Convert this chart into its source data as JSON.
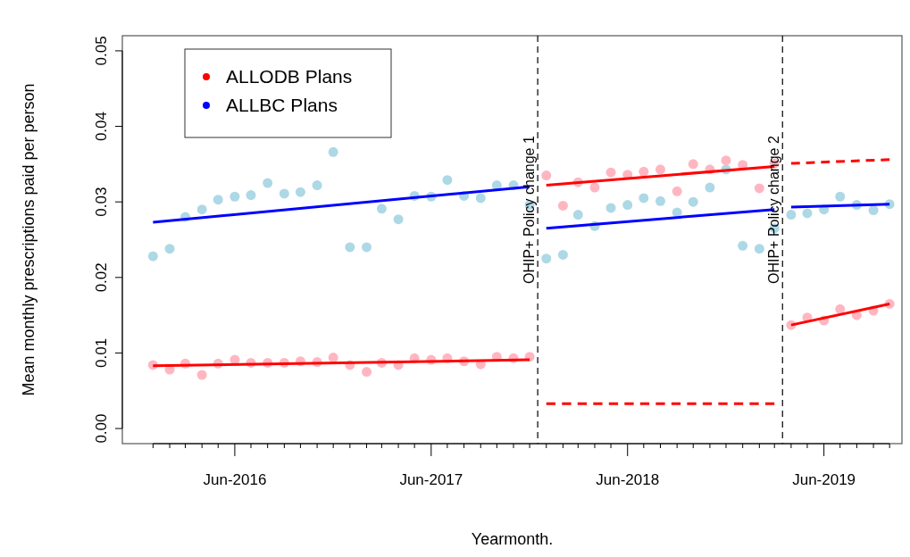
{
  "chart_data": {
    "type": "scatter",
    "xlabel": "Yearmonth.",
    "ylabel": "Mean monthly prescriptions paid per person",
    "xlim": [
      "2015-11-05",
      "2019-10-24"
    ],
    "xticks": [
      {
        "value": "2016-01",
        "label": null
      },
      {
        "value": "2016-02",
        "label": null
      },
      {
        "value": "2016-03",
        "label": null
      },
      {
        "value": "2016-04",
        "label": null
      },
      {
        "value": "2016-05",
        "label": null
      },
      {
        "value": "2016-06",
        "label": "Jun-2016"
      },
      {
        "value": "2016-07",
        "label": null
      },
      {
        "value": "2016-08",
        "label": null
      },
      {
        "value": "2016-09",
        "label": null
      },
      {
        "value": "2016-10",
        "label": null
      },
      {
        "value": "2016-11",
        "label": null
      },
      {
        "value": "2016-12",
        "label": null
      },
      {
        "value": "2017-01",
        "label": null
      },
      {
        "value": "2017-02",
        "label": null
      },
      {
        "value": "2017-03",
        "label": null
      },
      {
        "value": "2017-04",
        "label": null
      },
      {
        "value": "2017-05",
        "label": null
      },
      {
        "value": "2017-06",
        "label": "Jun-2017"
      },
      {
        "value": "2017-07",
        "label": null
      },
      {
        "value": "2017-08",
        "label": null
      },
      {
        "value": "2017-09",
        "label": null
      },
      {
        "value": "2017-10",
        "label": null
      },
      {
        "value": "2017-11",
        "label": null
      },
      {
        "value": "2017-12",
        "label": null
      },
      {
        "value": "2018-01",
        "label": null
      },
      {
        "value": "2018-02",
        "label": null
      },
      {
        "value": "2018-03",
        "label": null
      },
      {
        "value": "2018-04",
        "label": null
      },
      {
        "value": "2018-05",
        "label": null
      },
      {
        "value": "2018-06",
        "label": "Jun-2018"
      },
      {
        "value": "2018-07",
        "label": null
      },
      {
        "value": "2018-08",
        "label": null
      },
      {
        "value": "2018-09",
        "label": null
      },
      {
        "value": "2018-10",
        "label": null
      },
      {
        "value": "2018-11",
        "label": null
      },
      {
        "value": "2018-12",
        "label": null
      },
      {
        "value": "2019-01",
        "label": null
      },
      {
        "value": "2019-02",
        "label": null
      },
      {
        "value": "2019-03",
        "label": null
      },
      {
        "value": "2019-04",
        "label": null
      },
      {
        "value": "2019-05",
        "label": null
      },
      {
        "value": "2019-06",
        "label": "Jun-2019"
      },
      {
        "value": "2019-07",
        "label": null
      },
      {
        "value": "2019-08",
        "label": null
      },
      {
        "value": "2019-09",
        "label": null
      },
      {
        "value": "2019-10",
        "label": null
      }
    ],
    "ylim": [
      -0.002,
      0.052
    ],
    "yticks": [
      {
        "value": 0,
        "label": "0.00"
      },
      {
        "value": 0.01,
        "label": "0.01"
      },
      {
        "value": 0.02,
        "label": "0.02"
      },
      {
        "value": 0.03,
        "label": "0.03"
      },
      {
        "value": 0.04,
        "label": "0.04"
      },
      {
        "value": 0.05,
        "label": "0.05"
      }
    ],
    "legend": "top left",
    "grid": false,
    "ref_lines": [
      {
        "axis": "x",
        "value": "2017-12-16",
        "label": "OHIP+ Policy change 1",
        "color": "#000000",
        "line_style": "dashed"
      },
      {
        "axis": "x",
        "value": "2019-03-16",
        "label": "OHIP+ Policy change 2",
        "color": "#000000",
        "line_style": "dashed"
      }
    ],
    "series": [
      {
        "color": "#add8e6",
        "x": [
          "2016-01",
          "2016-02",
          "2016-03",
          "2016-04",
          "2016-05",
          "2016-06",
          "2016-07",
          "2016-08",
          "2016-09",
          "2016-10",
          "2016-11",
          "2016-12",
          "2017-01",
          "2017-02",
          "2017-03",
          "2017-04",
          "2017-05",
          "2017-06",
          "2017-07",
          "2017-08",
          "2017-09",
          "2017-10",
          "2017-11",
          "2017-12",
          "2018-01",
          "2018-02",
          "2018-03",
          "2018-04",
          "2018-05",
          "2018-06",
          "2018-07",
          "2018-08",
          "2018-09",
          "2018-10",
          "2018-11",
          "2018-12",
          "2019-01",
          "2019-02",
          "2019-03",
          "2019-04",
          "2019-05",
          "2019-06",
          "2019-07",
          "2019-08",
          "2019-09",
          "2019-10"
        ],
        "values": [
          0.0228,
          0.0238,
          0.028,
          0.029,
          0.0303,
          0.0307,
          0.0309,
          0.0325,
          0.0311,
          0.0313,
          0.0322,
          0.0366,
          0.024,
          0.024,
          0.0291,
          0.0277,
          0.0308,
          0.0307,
          0.0329,
          0.0308,
          0.0305,
          0.0322,
          0.0322,
          0.0296,
          0.0225,
          0.023,
          0.0283,
          0.0268,
          0.0292,
          0.0296,
          0.0305,
          0.0301,
          0.0286,
          0.03,
          0.0319,
          0.0343,
          0.0242,
          0.0238,
          0.0265,
          0.0283,
          0.0285,
          0.029,
          0.0307,
          0.0296,
          0.0289,
          0.0297
        ]
      },
      {
        "color": "#ffb6c1",
        "x": [
          "2016-01",
          "2016-02",
          "2016-03",
          "2016-04",
          "2016-05",
          "2016-06",
          "2016-07",
          "2016-08",
          "2016-09",
          "2016-10",
          "2016-11",
          "2016-12",
          "2017-01",
          "2017-02",
          "2017-03",
          "2017-04",
          "2017-05",
          "2017-06",
          "2017-07",
          "2017-08",
          "2017-09",
          "2017-10",
          "2017-11",
          "2017-12",
          "2018-01",
          "2018-02",
          "2018-03",
          "2018-04",
          "2018-05",
          "2018-06",
          "2018-07",
          "2018-08",
          "2018-09",
          "2018-10",
          "2018-11",
          "2018-12",
          "2019-01",
          "2019-02",
          "2019-03",
          "2019-04",
          "2019-05",
          "2019-06",
          "2019-07",
          "2019-08",
          "2019-09",
          "2019-10"
        ],
        "values": [
          0.0084,
          0.0078,
          0.0086,
          0.0071,
          0.0086,
          0.0091,
          0.0087,
          0.0087,
          0.0087,
          0.0089,
          0.0088,
          0.0094,
          0.0084,
          0.0075,
          0.0087,
          0.0084,
          0.0093,
          0.0091,
          0.0093,
          0.0089,
          0.0085,
          0.0095,
          0.0093,
          0.0095,
          0.0335,
          0.0295,
          0.0326,
          0.0319,
          0.0339,
          0.0336,
          0.034,
          0.0343,
          0.0314,
          0.035,
          0.0343,
          0.0355,
          0.0349,
          0.0318,
          0.0351,
          0.0137,
          0.0147,
          0.0143,
          0.0158,
          0.015,
          0.0156,
          0.0165
        ]
      },
      {
        "type": "line",
        "name": "ALLODB Plans",
        "color": "#ff0000",
        "x": [
          "2016-01",
          "2017-12"
        ],
        "values": [
          0.0083,
          0.0091
        ]
      },
      {
        "type": "line",
        "color": "#ff0000",
        "x": [
          "2018-01",
          "2019-03"
        ],
        "values": [
          0.0322,
          0.0347
        ]
      },
      {
        "type": "line",
        "color": "#ff0000",
        "x": [
          "2019-04",
          "2019-10"
        ],
        "values": [
          0.0137,
          0.0165
        ]
      },
      {
        "type": "line",
        "color": "#ff0000",
        "line_style": "dashed",
        "x": [
          "2018-01",
          "2019-03"
        ],
        "values": [
          0.0033,
          0.0033
        ]
      },
      {
        "type": "line",
        "color": "#ff0000",
        "line_style": "dashed",
        "x": [
          "2019-04",
          "2019-10"
        ],
        "values": [
          0.0351,
          0.0356
        ]
      },
      {
        "type": "line",
        "name": "ALLBC Plans",
        "color": "#0000ff",
        "x": [
          "2016-01",
          "2017-12"
        ],
        "values": [
          0.0273,
          0.032
        ]
      },
      {
        "type": "line",
        "color": "#0000ff",
        "x": [
          "2018-01",
          "2019-03"
        ],
        "values": [
          0.0265,
          0.029
        ]
      },
      {
        "type": "line",
        "color": "#0000ff",
        "x": [
          "2019-04",
          "2019-10"
        ],
        "values": [
          0.0293,
          0.0297
        ]
      }
    ]
  }
}
